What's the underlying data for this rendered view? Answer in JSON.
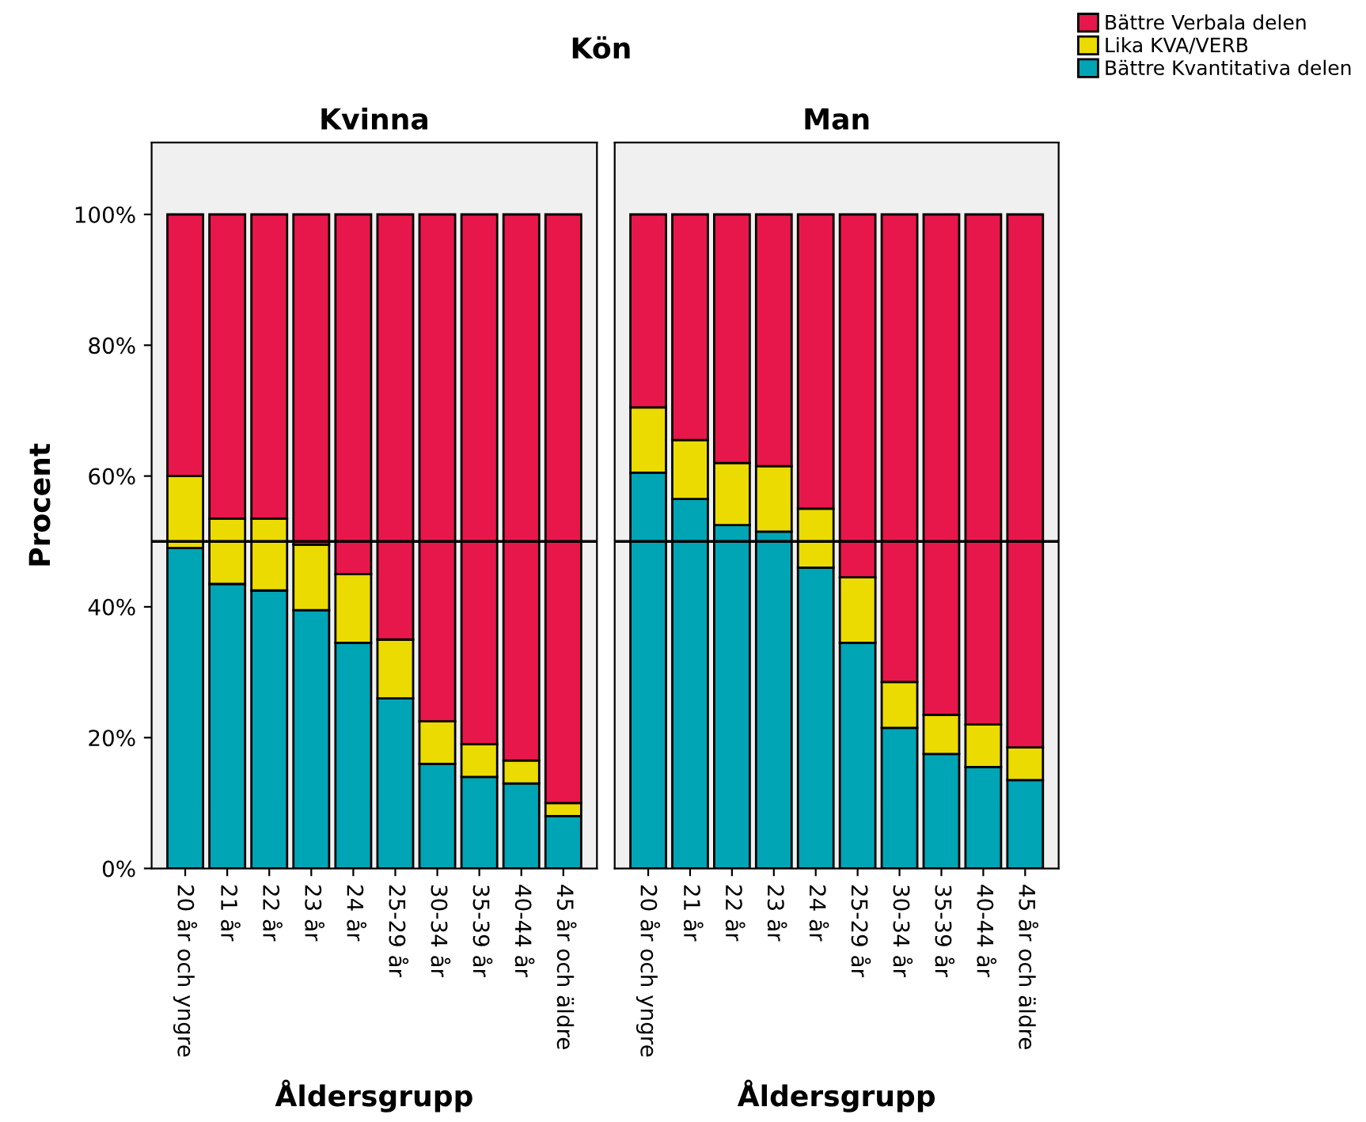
{
  "chart_data": [
    {
      "type": "bar",
      "title": "Kvinna",
      "annotations": [
        "Kön"
      ],
      "xlabel": "Åldersgrupp",
      "ylabel": "Procent",
      "stacked": true,
      "legend": "top right",
      "categories": [
        "20 år och yngre",
        "21 år",
        "22 år",
        "23 år",
        "24 år",
        "25-29 år",
        "30-34 år",
        "35-39 år",
        "40-44 år",
        "45 år och äldre"
      ],
      "series": [
        {
          "name": "Bättre Kvantitativa delen",
          "color": "#00a5b5",
          "values": [
            49,
            43.5,
            42.5,
            39.5,
            34.5,
            26,
            16,
            14,
            13,
            8
          ]
        },
        {
          "name": "Lika KVA/VERB",
          "color": "#ecdb00",
          "values": [
            11,
            10,
            11,
            10,
            10.5,
            9,
            6.5,
            5,
            3.5,
            2
          ]
        },
        {
          "name": "Bättre Verbala delen",
          "color": "#e8174b",
          "values": [
            40,
            46.5,
            46.5,
            50.5,
            55,
            65,
            77.5,
            81,
            83.5,
            90
          ]
        }
      ],
      "ylim": [
        0,
        111
      ],
      "yticks": [
        {
          "value": 0,
          "label": "0%"
        },
        {
          "value": 20,
          "label": "20%"
        },
        {
          "value": 40,
          "label": "40%"
        },
        {
          "value": 60,
          "label": "60%"
        },
        {
          "value": 80,
          "label": "80%"
        },
        {
          "value": 100,
          "label": "100%"
        }
      ],
      "ref_lines": [
        {
          "axis": "y",
          "value": 50,
          "color": "#000000"
        }
      ]
    },
    {
      "type": "bar",
      "title": "Man",
      "xlabel": "Åldersgrupp",
      "stacked": true,
      "tick_labels": "x",
      "categories": [
        "20 år och yngre",
        "21 år",
        "22 år",
        "23 år",
        "24 år",
        "25-29 år",
        "30-34 år",
        "35-39 år",
        "40-44 år",
        "45 år och äldre"
      ],
      "series": [
        {
          "color": "#00a5b5",
          "values": [
            60.5,
            56.5,
            52.5,
            51.5,
            46,
            34.5,
            21.5,
            17.5,
            15.5,
            13.5
          ]
        },
        {
          "color": "#ecdb00",
          "values": [
            10,
            9,
            9.5,
            10,
            9,
            10,
            7,
            6,
            6.5,
            5
          ]
        },
        {
          "color": "#e8174b",
          "values": [
            29.5,
            34.5,
            38,
            38.5,
            45,
            55.5,
            71.5,
            76.5,
            78,
            81.5
          ]
        }
      ],
      "ylim": [
        0,
        111
      ],
      "ref_lines": [
        {
          "axis": "y",
          "value": 50,
          "color": "#000000"
        }
      ]
    }
  ]
}
